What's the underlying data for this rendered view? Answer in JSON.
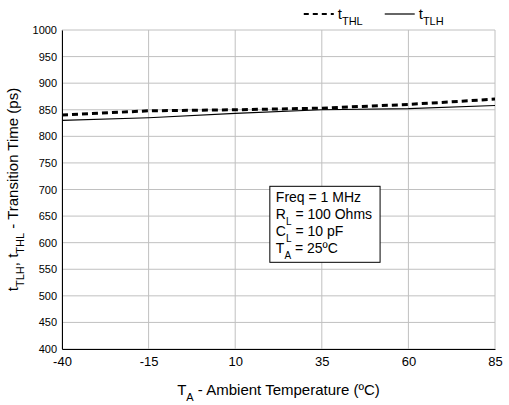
{
  "chart_data": {
    "type": "line",
    "x": [
      -40,
      -15,
      10,
      35,
      60,
      85
    ],
    "series": [
      {
        "name": "tTHL",
        "color": "#000000",
        "line_style": "dashed",
        "values": [
          840,
          848,
          850,
          853,
          860,
          870
        ]
      },
      {
        "name": "tTLH",
        "color": "#000000",
        "line_style": "solid",
        "values": [
          830,
          835,
          843,
          850,
          852,
          858
        ]
      }
    ],
    "xlabel": "TA - Ambient Temperature (ºC)",
    "ylabel": "tTLH, tTHL - Transition Time (ps)",
    "annotations": [
      "Freq = 1 MHz",
      "RL = 100 Ohms",
      "CL = 10 pF",
      "TA = 25ºC"
    ],
    "xlim": [
      -40,
      85
    ],
    "xticks": [
      -40,
      -15,
      10,
      35,
      60,
      85
    ],
    "ylim": [
      400,
      1000
    ],
    "yticks": [
      400,
      450,
      500,
      550,
      600,
      650,
      700,
      750,
      800,
      850,
      900,
      950,
      1000
    ],
    "grid": true,
    "legend": "top"
  }
}
